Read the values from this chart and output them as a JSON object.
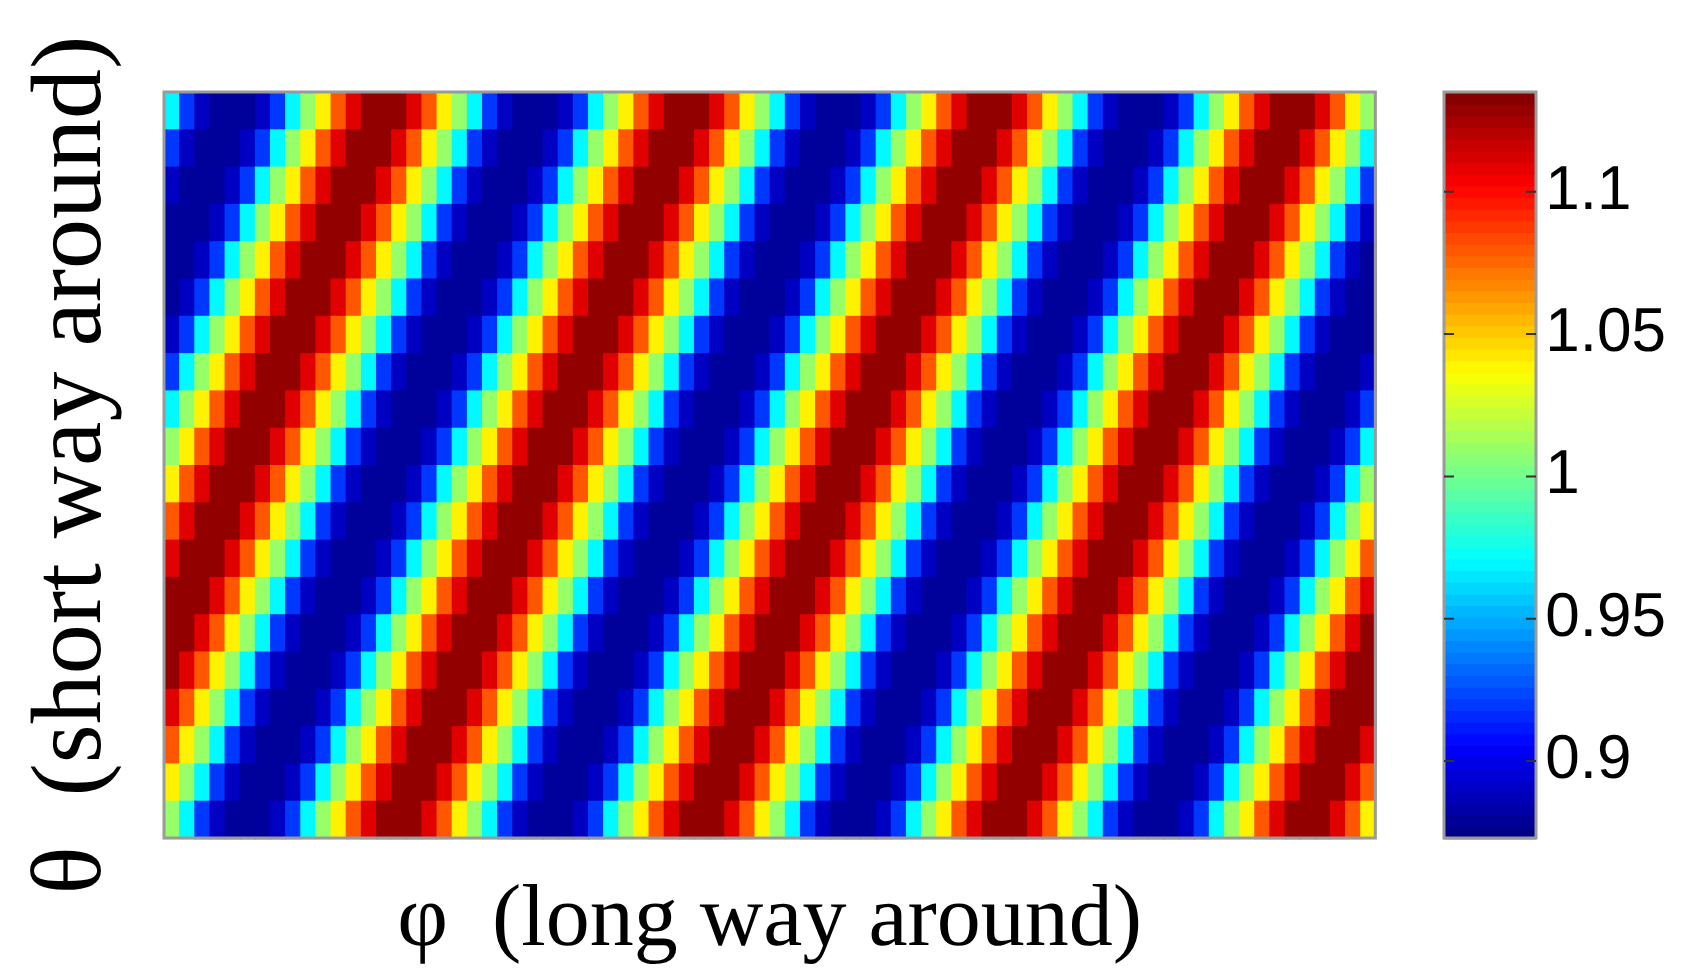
{
  "chart_data": {
    "type": "heatmap",
    "xlabel": "φ  (long way around)",
    "ylabel": "θ  (short way around)",
    "categories": [
      null,
      null,
      null,
      null,
      null,
      null,
      null,
      null,
      null,
      null,
      null,
      null,
      null,
      null,
      null,
      null,
      null,
      null,
      null,
      null,
      null,
      null,
      null,
      null,
      null,
      null,
      null,
      null,
      null,
      null,
      null,
      null,
      null,
      null,
      null,
      null,
      null,
      null,
      null,
      null,
      null,
      null,
      null,
      null,
      null,
      null,
      null,
      null,
      null,
      null,
      null,
      null,
      null,
      null,
      null,
      null,
      null,
      null,
      null,
      null,
      null,
      null,
      null,
      null,
      null,
      null,
      null,
      null,
      null,
      null,
      null,
      null,
      null,
      null,
      null,
      null,
      null,
      null,
      null,
      null
    ],
    "y_categories": [
      null,
      null,
      null,
      null,
      null,
      null,
      null,
      null,
      null,
      null,
      null,
      null,
      null,
      null,
      null,
      null,
      null,
      null,
      null,
      null
    ],
    "clim": [
      0.873,
      1.135
    ],
    "cticks": [
      0.9,
      0.95,
      1,
      1.05,
      1.1
    ],
    "cells": [
      [
        0.97,
        0.92,
        0.89,
        0.88,
        0.88,
        0.88,
        0.89,
        0.92,
        0.97,
        1.01,
        1.04,
        1.08,
        1.11,
        1.13,
        1.13,
        1.13,
        1.11,
        1.08,
        1.04,
        1.01,
        0.97,
        0.92,
        0.89,
        0.88,
        0.88,
        0.88,
        0.89,
        0.92,
        0.97,
        1.01,
        1.04,
        1.08,
        1.11,
        1.13,
        1.13,
        1.13,
        1.11,
        1.08,
        1.04,
        1.01,
        0.97,
        0.92,
        0.89,
        0.88,
        0.88,
        0.88,
        0.89,
        0.92,
        0.97,
        1.01,
        1.04,
        1.08,
        1.11,
        1.13,
        1.13,
        1.13,
        1.11,
        1.08,
        1.04,
        1.01,
        0.97,
        0.92,
        0.89,
        0.88,
        0.88,
        0.88,
        0.89,
        0.92,
        0.97,
        1.01,
        1.04,
        1.08,
        1.11,
        1.13,
        1.13,
        1.13,
        1.11,
        1.08,
        1.04,
        1.01
      ],
      [
        0.92,
        0.89,
        0.88,
        0.88,
        0.88,
        0.89,
        0.92,
        0.97,
        1.01,
        1.04,
        1.08,
        1.11,
        1.13,
        1.13,
        1.13,
        1.11,
        1.08,
        1.04,
        1.01,
        0.97,
        0.92,
        0.89,
        0.88,
        0.88,
        0.88,
        0.89,
        0.92,
        0.97,
        1.01,
        1.04,
        1.08,
        1.11,
        1.13,
        1.13,
        1.13,
        1.11,
        1.08,
        1.04,
        1.01,
        0.97,
        0.92,
        0.89,
        0.88,
        0.88,
        0.88,
        0.89,
        0.92,
        0.97,
        1.01,
        1.04,
        1.08,
        1.11,
        1.13,
        1.13,
        1.13,
        1.11,
        1.08,
        1.04,
        1.01,
        0.97,
        0.92,
        0.89,
        0.88,
        0.88,
        0.88,
        0.89,
        0.92,
        0.97,
        1.01,
        1.04,
        1.08,
        1.11,
        1.13,
        1.13,
        1.13,
        1.11,
        1.08,
        1.04,
        1.01,
        0.97
      ],
      [
        0.89,
        0.88,
        0.88,
        0.88,
        0.89,
        0.92,
        0.97,
        1.01,
        1.04,
        1.08,
        1.11,
        1.13,
        1.13,
        1.13,
        1.11,
        1.08,
        1.04,
        1.01,
        0.97,
        0.92,
        0.89,
        0.88,
        0.88,
        0.88,
        0.89,
        0.92,
        0.97,
        1.01,
        1.04,
        1.08,
        1.11,
        1.13,
        1.13,
        1.13,
        1.11,
        1.08,
        1.04,
        1.01,
        0.97,
        0.92,
        0.89,
        0.88,
        0.88,
        0.88,
        0.89,
        0.92,
        0.97,
        1.01,
        1.04,
        1.08,
        1.11,
        1.13,
        1.13,
        1.13,
        1.11,
        1.08,
        1.04,
        1.01,
        0.97,
        0.92,
        0.89,
        0.88,
        0.88,
        0.88,
        0.89,
        0.92,
        0.97,
        1.01,
        1.04,
        1.08,
        1.11,
        1.13,
        1.13,
        1.13,
        1.11,
        1.08,
        1.04,
        1.01,
        0.97,
        0.92
      ],
      [
        0.88,
        0.88,
        0.88,
        0.89,
        0.92,
        0.97,
        1.01,
        1.04,
        1.08,
        1.11,
        1.13,
        1.13,
        1.13,
        1.11,
        1.08,
        1.04,
        1.01,
        0.97,
        0.92,
        0.89,
        0.88,
        0.88,
        0.88,
        0.89,
        0.92,
        0.97,
        1.01,
        1.04,
        1.08,
        1.11,
        1.13,
        1.13,
        1.13,
        1.11,
        1.08,
        1.04,
        1.01,
        0.97,
        0.92,
        0.89,
        0.88,
        0.88,
        0.88,
        0.89,
        0.92,
        0.97,
        1.01,
        1.04,
        1.08,
        1.11,
        1.13,
        1.13,
        1.13,
        1.11,
        1.08,
        1.04,
        1.01,
        0.97,
        0.92,
        0.89,
        0.88,
        0.88,
        0.88,
        0.89,
        0.92,
        0.97,
        1.01,
        1.04,
        1.08,
        1.11,
        1.13,
        1.13,
        1.13,
        1.11,
        1.08,
        1.04,
        1.01,
        0.97,
        0.92,
        0.89
      ],
      [
        0.88,
        0.88,
        0.89,
        0.92,
        0.97,
        1.01,
        1.04,
        1.08,
        1.11,
        1.13,
        1.13,
        1.13,
        1.11,
        1.08,
        1.04,
        1.01,
        0.97,
        0.92,
        0.89,
        0.88,
        0.88,
        0.88,
        0.89,
        0.92,
        0.97,
        1.01,
        1.04,
        1.08,
        1.11,
        1.13,
        1.13,
        1.13,
        1.11,
        1.08,
        1.04,
        1.01,
        0.97,
        0.92,
        0.89,
        0.88,
        0.88,
        0.88,
        0.89,
        0.92,
        0.97,
        1.01,
        1.04,
        1.08,
        1.11,
        1.13,
        1.13,
        1.13,
        1.11,
        1.08,
        1.04,
        1.01,
        0.97,
        0.92,
        0.89,
        0.88,
        0.88,
        0.88,
        0.89,
        0.92,
        0.97,
        1.01,
        1.04,
        1.08,
        1.11,
        1.13,
        1.13,
        1.13,
        1.11,
        1.08,
        1.04,
        1.01,
        0.97,
        0.92,
        0.89,
        0.88
      ],
      [
        0.88,
        0.89,
        0.92,
        0.97,
        1.01,
        1.04,
        1.08,
        1.11,
        1.13,
        1.13,
        1.13,
        1.11,
        1.08,
        1.04,
        1.01,
        0.97,
        0.92,
        0.89,
        0.88,
        0.88,
        0.88,
        0.89,
        0.92,
        0.97,
        1.01,
        1.04,
        1.08,
        1.11,
        1.13,
        1.13,
        1.13,
        1.11,
        1.08,
        1.04,
        1.01,
        0.97,
        0.92,
        0.89,
        0.88,
        0.88,
        0.88,
        0.89,
        0.92,
        0.97,
        1.01,
        1.04,
        1.08,
        1.11,
        1.13,
        1.13,
        1.13,
        1.11,
        1.08,
        1.04,
        1.01,
        0.97,
        0.92,
        0.89,
        0.88,
        0.88,
        0.88,
        0.89,
        0.92,
        0.97,
        1.01,
        1.04,
        1.08,
        1.11,
        1.13,
        1.13,
        1.13,
        1.11,
        1.08,
        1.04,
        1.01,
        0.97,
        0.92,
        0.89,
        0.88,
        0.88
      ],
      [
        0.89,
        0.92,
        0.97,
        1.01,
        1.04,
        1.08,
        1.11,
        1.13,
        1.13,
        1.13,
        1.11,
        1.08,
        1.04,
        1.01,
        0.97,
        0.92,
        0.89,
        0.88,
        0.88,
        0.88,
        0.89,
        0.92,
        0.97,
        1.01,
        1.04,
        1.08,
        1.11,
        1.13,
        1.13,
        1.13,
        1.11,
        1.08,
        1.04,
        1.01,
        0.97,
        0.92,
        0.89,
        0.88,
        0.88,
        0.88,
        0.89,
        0.92,
        0.97,
        1.01,
        1.04,
        1.08,
        1.11,
        1.13,
        1.13,
        1.13,
        1.11,
        1.08,
        1.04,
        1.01,
        0.97,
        0.92,
        0.89,
        0.88,
        0.88,
        0.88,
        0.89,
        0.92,
        0.97,
        1.01,
        1.04,
        1.08,
        1.11,
        1.13,
        1.13,
        1.13,
        1.11,
        1.08,
        1.04,
        1.01,
        0.97,
        0.92,
        0.89,
        0.88,
        0.88,
        0.88
      ],
      [
        0.92,
        0.97,
        1.01,
        1.04,
        1.08,
        1.11,
        1.13,
        1.13,
        1.13,
        1.11,
        1.08,
        1.04,
        1.01,
        0.97,
        0.92,
        0.89,
        0.88,
        0.88,
        0.88,
        0.89,
        0.92,
        0.97,
        1.01,
        1.04,
        1.08,
        1.11,
        1.13,
        1.13,
        1.13,
        1.11,
        1.08,
        1.04,
        1.01,
        0.97,
        0.92,
        0.89,
        0.88,
        0.88,
        0.88,
        0.89,
        0.92,
        0.97,
        1.01,
        1.04,
        1.08,
        1.11,
        1.13,
        1.13,
        1.13,
        1.11,
        1.08,
        1.04,
        1.01,
        0.97,
        0.92,
        0.89,
        0.88,
        0.88,
        0.88,
        0.89,
        0.92,
        0.97,
        1.01,
        1.04,
        1.08,
        1.11,
        1.13,
        1.13,
        1.13,
        1.11,
        1.08,
        1.04,
        1.01,
        0.97,
        0.92,
        0.89,
        0.88,
        0.88,
        0.88,
        0.89
      ],
      [
        0.97,
        1.01,
        1.04,
        1.08,
        1.11,
        1.13,
        1.13,
        1.13,
        1.11,
        1.08,
        1.04,
        1.01,
        0.97,
        0.92,
        0.89,
        0.88,
        0.88,
        0.88,
        0.89,
        0.92,
        0.97,
        1.01,
        1.04,
        1.08,
        1.11,
        1.13,
        1.13,
        1.13,
        1.11,
        1.08,
        1.04,
        1.01,
        0.97,
        0.92,
        0.89,
        0.88,
        0.88,
        0.88,
        0.89,
        0.92,
        0.97,
        1.01,
        1.04,
        1.08,
        1.11,
        1.13,
        1.13,
        1.13,
        1.11,
        1.08,
        1.04,
        1.01,
        0.97,
        0.92,
        0.89,
        0.88,
        0.88,
        0.88,
        0.89,
        0.92,
        0.97,
        1.01,
        1.04,
        1.08,
        1.11,
        1.13,
        1.13,
        1.13,
        1.11,
        1.08,
        1.04,
        1.01,
        0.97,
        0.92,
        0.89,
        0.88,
        0.88,
        0.88,
        0.89,
        0.92
      ],
      [
        1.01,
        1.04,
        1.08,
        1.11,
        1.13,
        1.13,
        1.13,
        1.11,
        1.08,
        1.04,
        1.01,
        0.97,
        0.92,
        0.89,
        0.88,
        0.88,
        0.88,
        0.89,
        0.92,
        0.97,
        1.01,
        1.04,
        1.08,
        1.11,
        1.13,
        1.13,
        1.13,
        1.11,
        1.08,
        1.04,
        1.01,
        0.97,
        0.92,
        0.89,
        0.88,
        0.88,
        0.88,
        0.89,
        0.92,
        0.97,
        1.01,
        1.04,
        1.08,
        1.11,
        1.13,
        1.13,
        1.13,
        1.11,
        1.08,
        1.04,
        1.01,
        0.97,
        0.92,
        0.89,
        0.88,
        0.88,
        0.88,
        0.89,
        0.92,
        0.97,
        1.01,
        1.04,
        1.08,
        1.11,
        1.13,
        1.13,
        1.13,
        1.11,
        1.08,
        1.04,
        1.01,
        0.97,
        0.92,
        0.89,
        0.88,
        0.88,
        0.88,
        0.89,
        0.92,
        0.97
      ],
      [
        1.04,
        1.08,
        1.11,
        1.13,
        1.13,
        1.13,
        1.11,
        1.08,
        1.04,
        1.01,
        0.97,
        0.92,
        0.89,
        0.88,
        0.88,
        0.88,
        0.89,
        0.92,
        0.97,
        1.01,
        1.04,
        1.08,
        1.11,
        1.13,
        1.13,
        1.13,
        1.11,
        1.08,
        1.04,
        1.01,
        0.97,
        0.92,
        0.89,
        0.88,
        0.88,
        0.88,
        0.89,
        0.92,
        0.97,
        1.01,
        1.04,
        1.08,
        1.11,
        1.13,
        1.13,
        1.13,
        1.11,
        1.08,
        1.04,
        1.01,
        0.97,
        0.92,
        0.89,
        0.88,
        0.88,
        0.88,
        0.89,
        0.92,
        0.97,
        1.01,
        1.04,
        1.08,
        1.11,
        1.13,
        1.13,
        1.13,
        1.11,
        1.08,
        1.04,
        1.01,
        0.97,
        0.92,
        0.89,
        0.88,
        0.88,
        0.88,
        0.89,
        0.92,
        0.97,
        1.01
      ],
      [
        1.08,
        1.11,
        1.13,
        1.13,
        1.13,
        1.11,
        1.08,
        1.04,
        1.01,
        0.97,
        0.92,
        0.89,
        0.88,
        0.88,
        0.88,
        0.89,
        0.92,
        0.97,
        1.01,
        1.04,
        1.08,
        1.11,
        1.13,
        1.13,
        1.13,
        1.11,
        1.08,
        1.04,
        1.01,
        0.97,
        0.92,
        0.89,
        0.88,
        0.88,
        0.88,
        0.89,
        0.92,
        0.97,
        1.01,
        1.04,
        1.08,
        1.11,
        1.13,
        1.13,
        1.13,
        1.11,
        1.08,
        1.04,
        1.01,
        0.97,
        0.92,
        0.89,
        0.88,
        0.88,
        0.88,
        0.89,
        0.92,
        0.97,
        1.01,
        1.04,
        1.08,
        1.11,
        1.13,
        1.13,
        1.13,
        1.11,
        1.08,
        1.04,
        1.01,
        0.97,
        0.92,
        0.89,
        0.88,
        0.88,
        0.88,
        0.89,
        0.92,
        0.97,
        1.01,
        1.04
      ],
      [
        1.11,
        1.13,
        1.13,
        1.13,
        1.11,
        1.08,
        1.04,
        1.01,
        0.97,
        0.92,
        0.89,
        0.88,
        0.88,
        0.88,
        0.89,
        0.92,
        0.97,
        1.01,
        1.04,
        1.08,
        1.11,
        1.13,
        1.13,
        1.13,
        1.11,
        1.08,
        1.04,
        1.01,
        0.97,
        0.92,
        0.89,
        0.88,
        0.88,
        0.88,
        0.89,
        0.92,
        0.97,
        1.01,
        1.04,
        1.08,
        1.11,
        1.13,
        1.13,
        1.13,
        1.11,
        1.08,
        1.04,
        1.01,
        0.97,
        0.92,
        0.89,
        0.88,
        0.88,
        0.88,
        0.89,
        0.92,
        0.97,
        1.01,
        1.04,
        1.08,
        1.11,
        1.13,
        1.13,
        1.13,
        1.11,
        1.08,
        1.04,
        1.01,
        0.97,
        0.92,
        0.89,
        0.88,
        0.88,
        0.88,
        0.89,
        0.92,
        0.97,
        1.01,
        1.04,
        1.08
      ],
      [
        1.13,
        1.13,
        1.13,
        1.11,
        1.08,
        1.04,
        1.01,
        0.97,
        0.92,
        0.89,
        0.88,
        0.88,
        0.88,
        0.89,
        0.92,
        0.97,
        1.01,
        1.04,
        1.08,
        1.11,
        1.13,
        1.13,
        1.13,
        1.11,
        1.08,
        1.04,
        1.01,
        0.97,
        0.92,
        0.89,
        0.88,
        0.88,
        0.88,
        0.89,
        0.92,
        0.97,
        1.01,
        1.04,
        1.08,
        1.11,
        1.13,
        1.13,
        1.13,
        1.11,
        1.08,
        1.04,
        1.01,
        0.97,
        0.92,
        0.89,
        0.88,
        0.88,
        0.88,
        0.89,
        0.92,
        0.97,
        1.01,
        1.04,
        1.08,
        1.11,
        1.13,
        1.13,
        1.13,
        1.11,
        1.08,
        1.04,
        1.01,
        0.97,
        0.92,
        0.89,
        0.88,
        0.88,
        0.88,
        0.89,
        0.92,
        0.97,
        1.01,
        1.04,
        1.08,
        1.11
      ],
      [
        1.13,
        1.13,
        1.11,
        1.08,
        1.04,
        1.01,
        0.97,
        0.92,
        0.89,
        0.88,
        0.88,
        0.88,
        0.89,
        0.92,
        0.97,
        1.01,
        1.04,
        1.08,
        1.11,
        1.13,
        1.13,
        1.13,
        1.11,
        1.08,
        1.04,
        1.01,
        0.97,
        0.92,
        0.89,
        0.88,
        0.88,
        0.88,
        0.89,
        0.92,
        0.97,
        1.01,
        1.04,
        1.08,
        1.11,
        1.13,
        1.13,
        1.13,
        1.11,
        1.08,
        1.04,
        1.01,
        0.97,
        0.92,
        0.89,
        0.88,
        0.88,
        0.88,
        0.89,
        0.92,
        0.97,
        1.01,
        1.04,
        1.08,
        1.11,
        1.13,
        1.13,
        1.13,
        1.11,
        1.08,
        1.04,
        1.01,
        0.97,
        0.92,
        0.89,
        0.88,
        0.88,
        0.88,
        0.89,
        0.92,
        0.97,
        1.01,
        1.04,
        1.08,
        1.11,
        1.13
      ],
      [
        1.13,
        1.11,
        1.08,
        1.04,
        1.01,
        0.97,
        0.92,
        0.89,
        0.88,
        0.88,
        0.88,
        0.89,
        0.92,
        0.97,
        1.01,
        1.04,
        1.08,
        1.11,
        1.13,
        1.13,
        1.13,
        1.11,
        1.08,
        1.04,
        1.01,
        0.97,
        0.92,
        0.89,
        0.88,
        0.88,
        0.88,
        0.89,
        0.92,
        0.97,
        1.01,
        1.04,
        1.08,
        1.11,
        1.13,
        1.13,
        1.13,
        1.11,
        1.08,
        1.04,
        1.01,
        0.97,
        0.92,
        0.89,
        0.88,
        0.88,
        0.88,
        0.89,
        0.92,
        0.97,
        1.01,
        1.04,
        1.08,
        1.11,
        1.13,
        1.13,
        1.13,
        1.11,
        1.08,
        1.04,
        1.01,
        0.97,
        0.92,
        0.89,
        0.88,
        0.88,
        0.88,
        0.89,
        0.92,
        0.97,
        1.01,
        1.04,
        1.08,
        1.11,
        1.13,
        1.13
      ],
      [
        1.11,
        1.08,
        1.04,
        1.01,
        0.97,
        0.92,
        0.89,
        0.88,
        0.88,
        0.88,
        0.89,
        0.92,
        0.97,
        1.01,
        1.04,
        1.08,
        1.11,
        1.13,
        1.13,
        1.13,
        1.11,
        1.08,
        1.04,
        1.01,
        0.97,
        0.92,
        0.89,
        0.88,
        0.88,
        0.88,
        0.89,
        0.92,
        0.97,
        1.01,
        1.04,
        1.08,
        1.11,
        1.13,
        1.13,
        1.13,
        1.11,
        1.08,
        1.04,
        1.01,
        0.97,
        0.92,
        0.89,
        0.88,
        0.88,
        0.88,
        0.89,
        0.92,
        0.97,
        1.01,
        1.04,
        1.08,
        1.11,
        1.13,
        1.13,
        1.13,
        1.11,
        1.08,
        1.04,
        1.01,
        0.97,
        0.92,
        0.89,
        0.88,
        0.88,
        0.88,
        0.89,
        0.92,
        0.97,
        1.01,
        1.04,
        1.08,
        1.11,
        1.13,
        1.13,
        1.13
      ],
      [
        1.08,
        1.04,
        1.01,
        0.97,
        0.92,
        0.89,
        0.88,
        0.88,
        0.88,
        0.89,
        0.92,
        0.97,
        1.01,
        1.04,
        1.08,
        1.11,
        1.13,
        1.13,
        1.13,
        1.11,
        1.08,
        1.04,
        1.01,
        0.97,
        0.92,
        0.89,
        0.88,
        0.88,
        0.88,
        0.89,
        0.92,
        0.97,
        1.01,
        1.04,
        1.08,
        1.11,
        1.13,
        1.13,
        1.13,
        1.11,
        1.08,
        1.04,
        1.01,
        0.97,
        0.92,
        0.89,
        0.88,
        0.88,
        0.88,
        0.89,
        0.92,
        0.97,
        1.01,
        1.04,
        1.08,
        1.11,
        1.13,
        1.13,
        1.13,
        1.11,
        1.08,
        1.04,
        1.01,
        0.97,
        0.92,
        0.89,
        0.88,
        0.88,
        0.88,
        0.89,
        0.92,
        0.97,
        1.01,
        1.04,
        1.08,
        1.11,
        1.13,
        1.13,
        1.13,
        1.11
      ],
      [
        1.04,
        1.01,
        0.97,
        0.92,
        0.89,
        0.88,
        0.88,
        0.88,
        0.89,
        0.92,
        0.97,
        1.01,
        1.04,
        1.08,
        1.11,
        1.13,
        1.13,
        1.13,
        1.11,
        1.08,
        1.04,
        1.01,
        0.97,
        0.92,
        0.89,
        0.88,
        0.88,
        0.88,
        0.89,
        0.92,
        0.97,
        1.01,
        1.04,
        1.08,
        1.11,
        1.13,
        1.13,
        1.13,
        1.11,
        1.08,
        1.04,
        1.01,
        0.97,
        0.92,
        0.89,
        0.88,
        0.88,
        0.88,
        0.89,
        0.92,
        0.97,
        1.01,
        1.04,
        1.08,
        1.11,
        1.13,
        1.13,
        1.13,
        1.11,
        1.08,
        1.04,
        1.01,
        0.97,
        0.92,
        0.89,
        0.88,
        0.88,
        0.88,
        0.89,
        0.92,
        0.97,
        1.01,
        1.04,
        1.08,
        1.11,
        1.13,
        1.13,
        1.13,
        1.11,
        1.08
      ],
      [
        1.01,
        0.97,
        0.92,
        0.89,
        0.88,
        0.88,
        0.88,
        0.89,
        0.92,
        0.97,
        1.01,
        1.04,
        1.08,
        1.11,
        1.13,
        1.13,
        1.13,
        1.11,
        1.08,
        1.04,
        1.01,
        0.97,
        0.92,
        0.89,
        0.88,
        0.88,
        0.88,
        0.89,
        0.92,
        0.97,
        1.01,
        1.04,
        1.08,
        1.11,
        1.13,
        1.13,
        1.13,
        1.11,
        1.08,
        1.04,
        1.01,
        0.97,
        0.92,
        0.89,
        0.88,
        0.88,
        0.88,
        0.89,
        0.92,
        0.97,
        1.01,
        1.04,
        1.08,
        1.11,
        1.13,
        1.13,
        1.13,
        1.11,
        1.08,
        1.04,
        1.01,
        0.97,
        0.92,
        0.89,
        0.88,
        0.88,
        0.88,
        0.89,
        0.92,
        0.97,
        1.01,
        1.04,
        1.08,
        1.11,
        1.13,
        1.13,
        1.13,
        1.11,
        1.08,
        1.04
      ]
    ]
  }
}
